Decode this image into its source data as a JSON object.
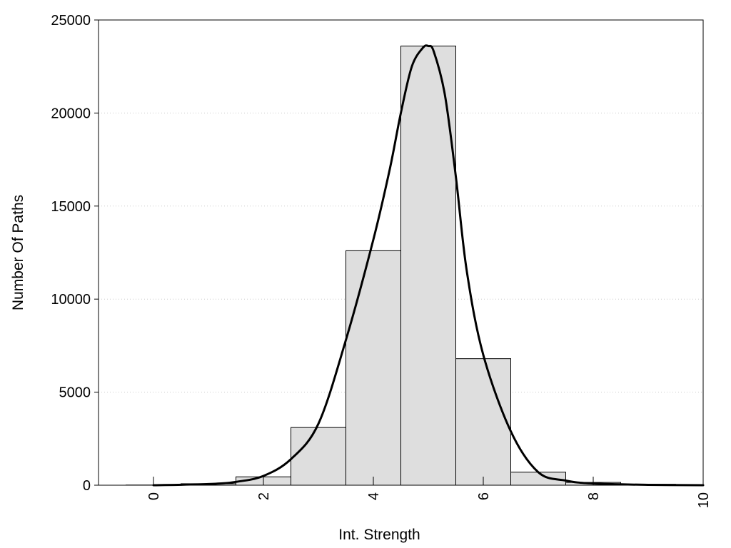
{
  "chart_data": {
    "type": "bar",
    "title": "",
    "xlabel": "Int. Strength",
    "ylabel": "Number Of Paths",
    "xlim": [
      -1,
      10
    ],
    "ylim": [
      0,
      25000
    ],
    "grid": "horizontal dotted",
    "legend": "none",
    "colors": {
      "bar_fill": "#dedede",
      "bar_stroke": "#000000",
      "curve": "#000000",
      "grid": "#cccccc"
    },
    "x_ticks": [
      "0",
      "2",
      "4",
      "6",
      "8",
      "10"
    ],
    "y_ticks": [
      "0",
      "5000",
      "10000",
      "15000",
      "20000",
      "25000"
    ],
    "bins": {
      "centers": [
        0,
        1,
        2,
        3,
        4,
        5,
        6,
        7,
        8,
        9,
        10
      ],
      "values": [
        10,
        80,
        450,
        3100,
        12600,
        23600,
        6800,
        700,
        150,
        50,
        0
      ]
    },
    "curve": {
      "x": [
        0,
        1,
        1.5,
        2,
        2.5,
        3,
        3.5,
        4,
        4.3,
        4.5,
        4.7,
        4.9,
        5.0,
        5.1,
        5.3,
        5.5,
        5.7,
        6.0,
        6.5,
        7.0,
        7.5,
        8.0,
        9.0,
        10.0
      ],
      "y": [
        0,
        60,
        180,
        500,
        1400,
        3300,
        7800,
        13200,
        17000,
        20000,
        22500,
        23500,
        23600,
        23300,
        21000,
        16600,
        11500,
        7000,
        2900,
        700,
        250,
        90,
        20,
        0
      ]
    }
  }
}
